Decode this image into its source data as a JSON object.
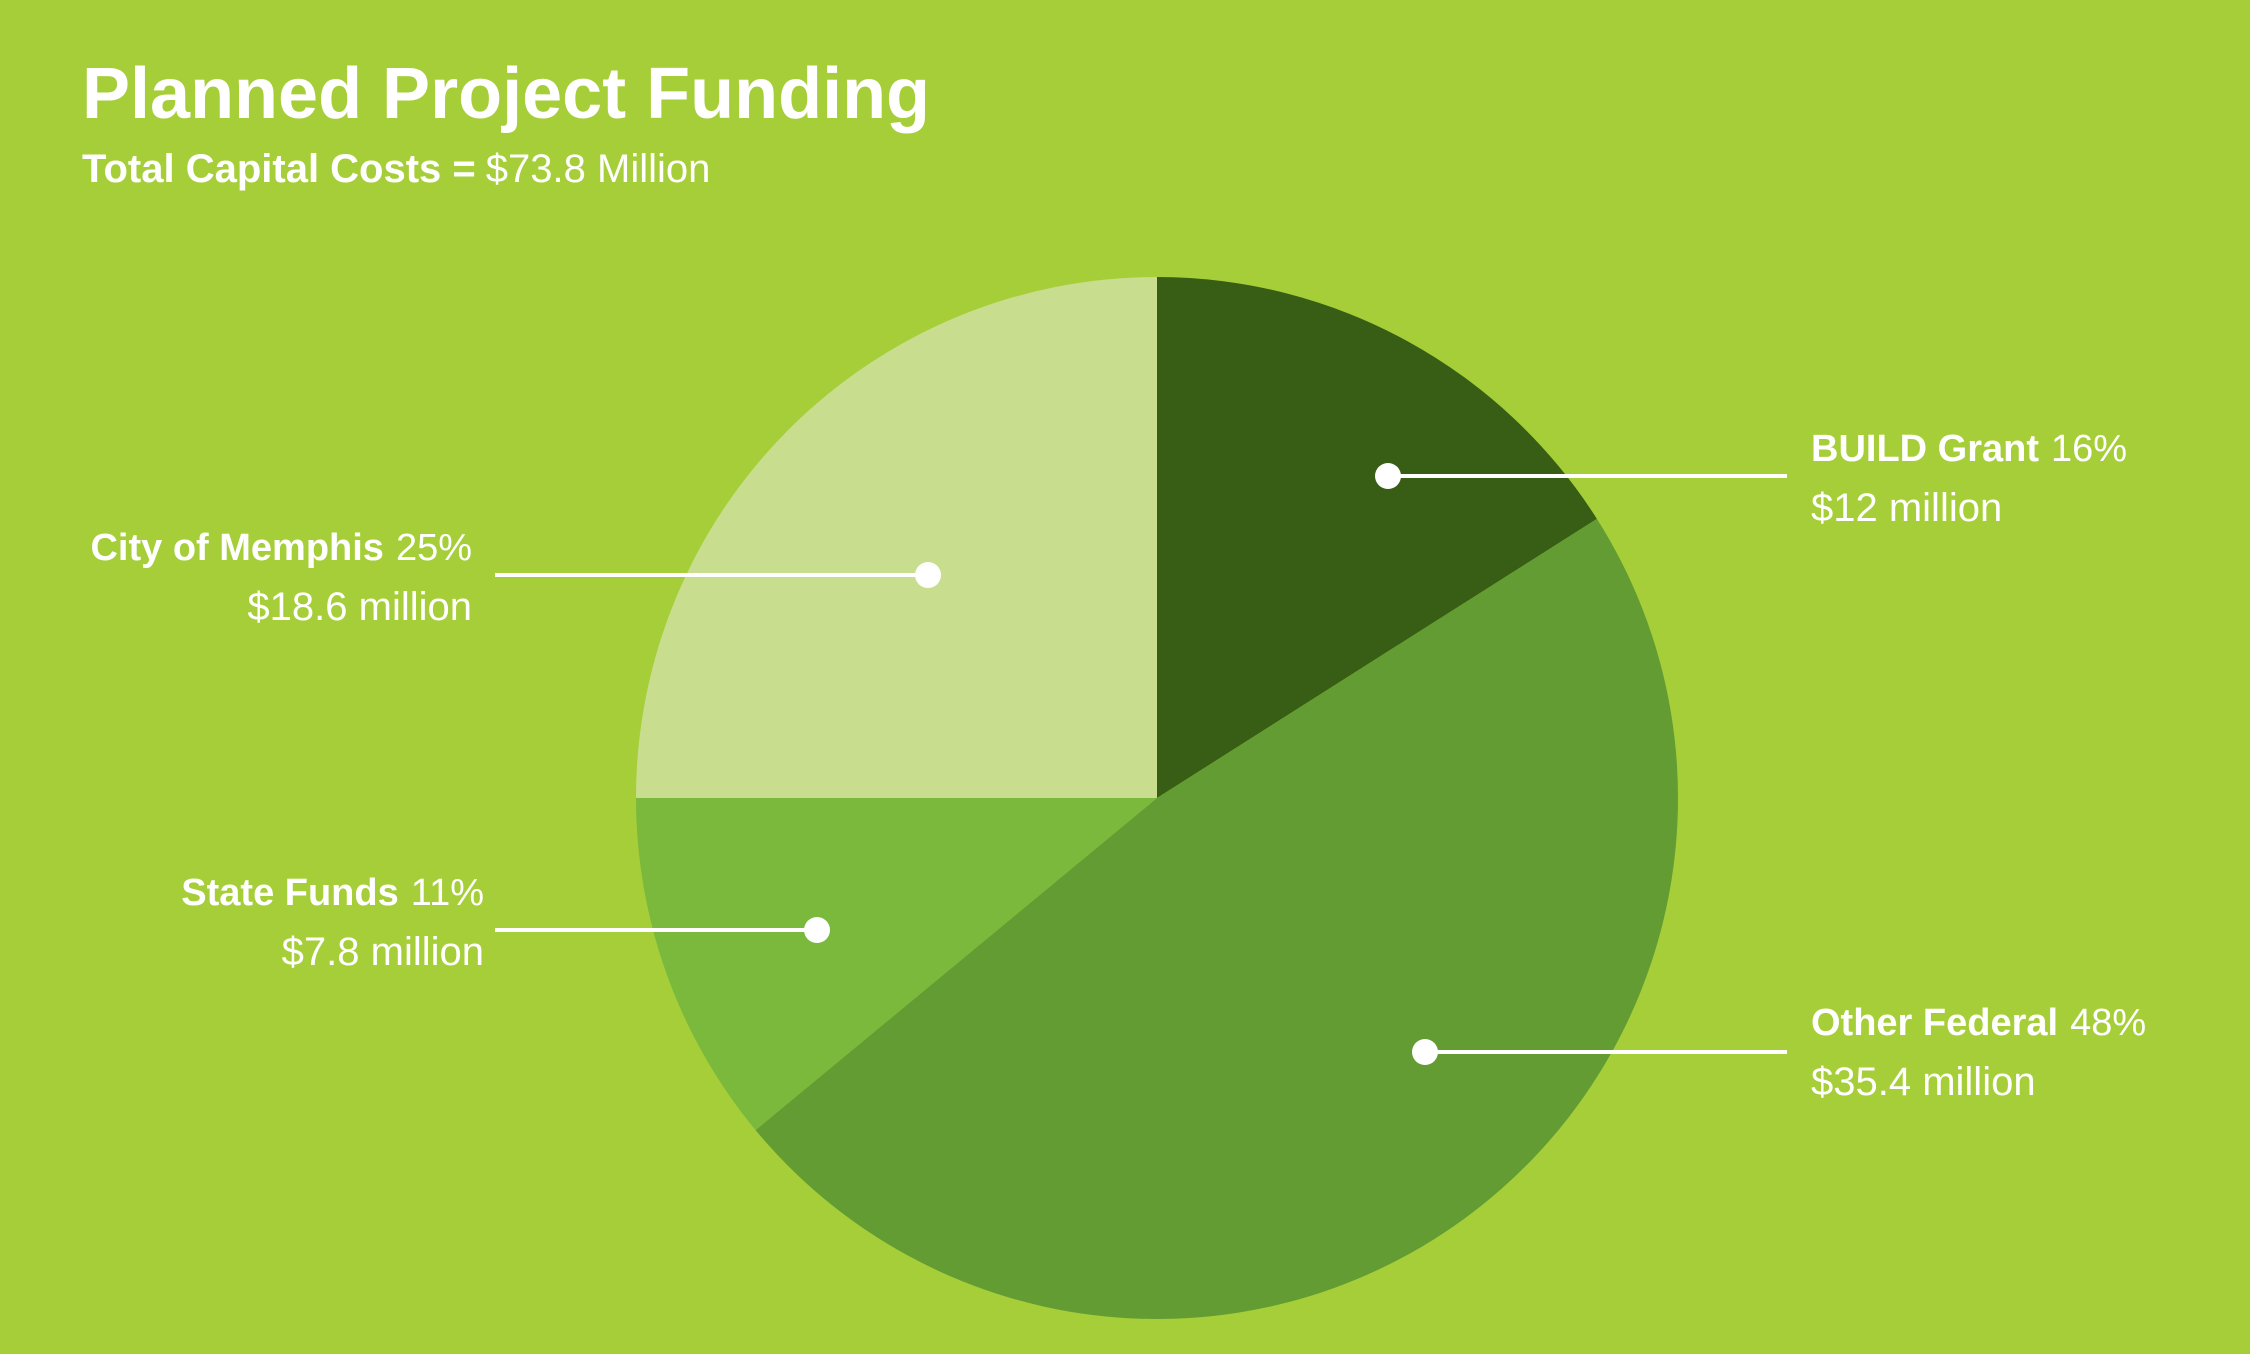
{
  "chart_data": {
    "type": "pie",
    "title": "Planned Project Funding",
    "subtitle_label": "Total Capital Costs =",
    "subtitle_amount": "$73.8 Million",
    "categories": [
      "BUILD Grant",
      "Other Federal",
      "State Funds",
      "City of Memphis"
    ],
    "values": [
      16,
      48,
      11,
      25
    ],
    "value_labels": [
      "16%",
      "48%",
      "11%",
      "25%"
    ],
    "amounts": [
      "$12 million",
      "$35.4 million",
      "$7.8 million",
      "$18.6 million"
    ],
    "colors": [
      "#385e15",
      "#629c32",
      "#7ab93c",
      "#c8de8e"
    ],
    "background": "#a6ce39"
  }
}
